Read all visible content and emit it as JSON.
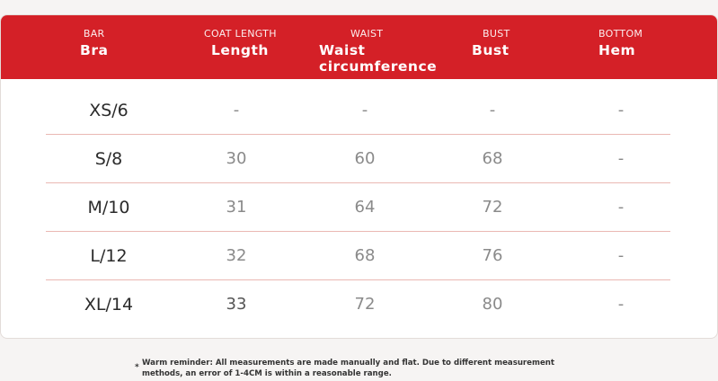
{
  "table": {
    "columns": [
      {
        "small": "BAR",
        "big": "Bra"
      },
      {
        "small": "COAT LENGTH",
        "big": "Length"
      },
      {
        "small": "WAIST",
        "big": "Waist circumference"
      },
      {
        "small": "BUST",
        "big": "Bust"
      },
      {
        "small": "BOTTOM",
        "big": "Hem"
      }
    ],
    "rows": [
      [
        "XS/6",
        "-",
        "-",
        "-",
        "-"
      ],
      [
        "S/8",
        "30",
        "60",
        "68",
        "-"
      ],
      [
        "M/10",
        "31",
        "64",
        "72",
        "-"
      ],
      [
        "L/12",
        "32",
        "68",
        "76",
        "-"
      ],
      [
        "XL/14",
        "33",
        "72",
        "80",
        "-"
      ]
    ]
  },
  "note": {
    "star": "*",
    "text": "Warm reminder: All measurements are made manually and flat. Due to different measurement methods, an error of 1-4CM is within a reasonable range."
  },
  "colors": {
    "header": "#d42027",
    "divider": "#eab8b3"
  }
}
